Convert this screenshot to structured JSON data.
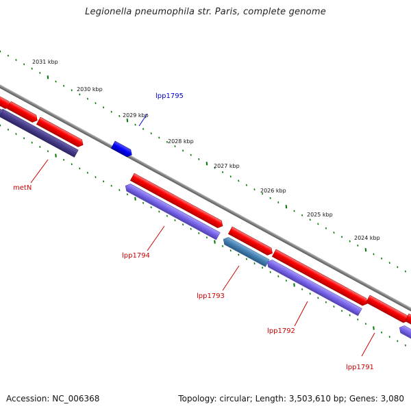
{
  "title": "Legionella pneumophila str. Paris, complete genome",
  "footer": {
    "accession": "Accession: NC_006368",
    "summary": "Topology: circular; Length: 3,503,610 bp; Genes: 3,080"
  },
  "colors": {
    "backbone": "#808080",
    "forward_cds": "#ff0000",
    "reverse_cds": "#7b68ee",
    "reverse_cds_dark": "#483d8b",
    "highlight": "#0000ff",
    "highlight_alt": "#4682b4",
    "tick": "#007700",
    "label_red": "#cc0000",
    "label_blue": "#0000cc"
  },
  "scale": {
    "unit": "kbp",
    "ticks": [
      {
        "label": "2031 kbp"
      },
      {
        "label": "2030 kbp"
      },
      {
        "label": "2029 kbp"
      },
      {
        "label": "2028 kbp"
      },
      {
        "label": "2027 kbp"
      },
      {
        "label": "2026 kbp"
      },
      {
        "label": "2025 kbp"
      },
      {
        "label": "2024 kbp"
      }
    ]
  },
  "gene_labels": [
    {
      "text": "metN",
      "color": "#cc0000"
    },
    {
      "text": "lpp1795",
      "color": "#0000cc"
    },
    {
      "text": "lpp1794",
      "color": "#cc0000"
    },
    {
      "text": "lpp1793",
      "color": "#cc0000"
    },
    {
      "text": "lpp1792",
      "color": "#cc0000"
    },
    {
      "text": "lpp1791",
      "color": "#cc0000"
    }
  ]
}
